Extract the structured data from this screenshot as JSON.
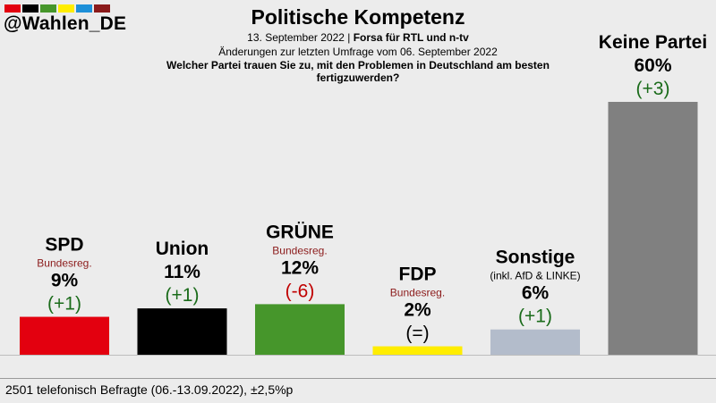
{
  "brand": {
    "handle": "@Wahlen_DE",
    "stripe_colors": [
      "#e3000f",
      "#000000",
      "#46962b",
      "#ffed00",
      "#1e90d8",
      "#8b1a1a"
    ]
  },
  "header": {
    "title": "Politische Kompetenz",
    "date": "13. September 2022",
    "pollster": "Forsa für RTL und n-tv",
    "changes_note": "Änderungen zur letzten Umfrage vom 06. September 2022",
    "question": "Welcher Partei trauen Sie zu, mit den Problemen in Deutschland am besten fertigzuwerden?"
  },
  "chart_data": {
    "type": "bar",
    "title": "Politische Kompetenz",
    "ylabel": "",
    "ylim": [
      0,
      60
    ],
    "categories": [
      "SPD",
      "Union",
      "GRÜNE",
      "FDP",
      "Sonstige",
      "Keine Partei"
    ],
    "values": [
      9,
      11,
      12,
      2,
      6,
      60
    ],
    "value_labels": [
      "9%",
      "11%",
      "12%",
      "2%",
      "6%",
      "60%"
    ],
    "changes": [
      "(+1)",
      "(+1)",
      "(-6)",
      "(=)",
      "(+1)",
      "(+3)"
    ],
    "notes": [
      "Bundesreg.",
      "",
      "Bundesreg.",
      "Bundesreg.",
      "(inkl. AfD & LINKE)",
      ""
    ],
    "colors": [
      "#e3000f",
      "#000000",
      "#46962b",
      "#ffed00",
      "#b3bccb",
      "#808080"
    ],
    "note_color": "#8b1a1a",
    "change_colors": {
      "up": "#1a6b1a",
      "down": "#c00000",
      "same": "#000000"
    }
  },
  "footer": {
    "sample": "2501 telefonisch Befragte (06.-13.09.2022), ±2,5%p"
  }
}
